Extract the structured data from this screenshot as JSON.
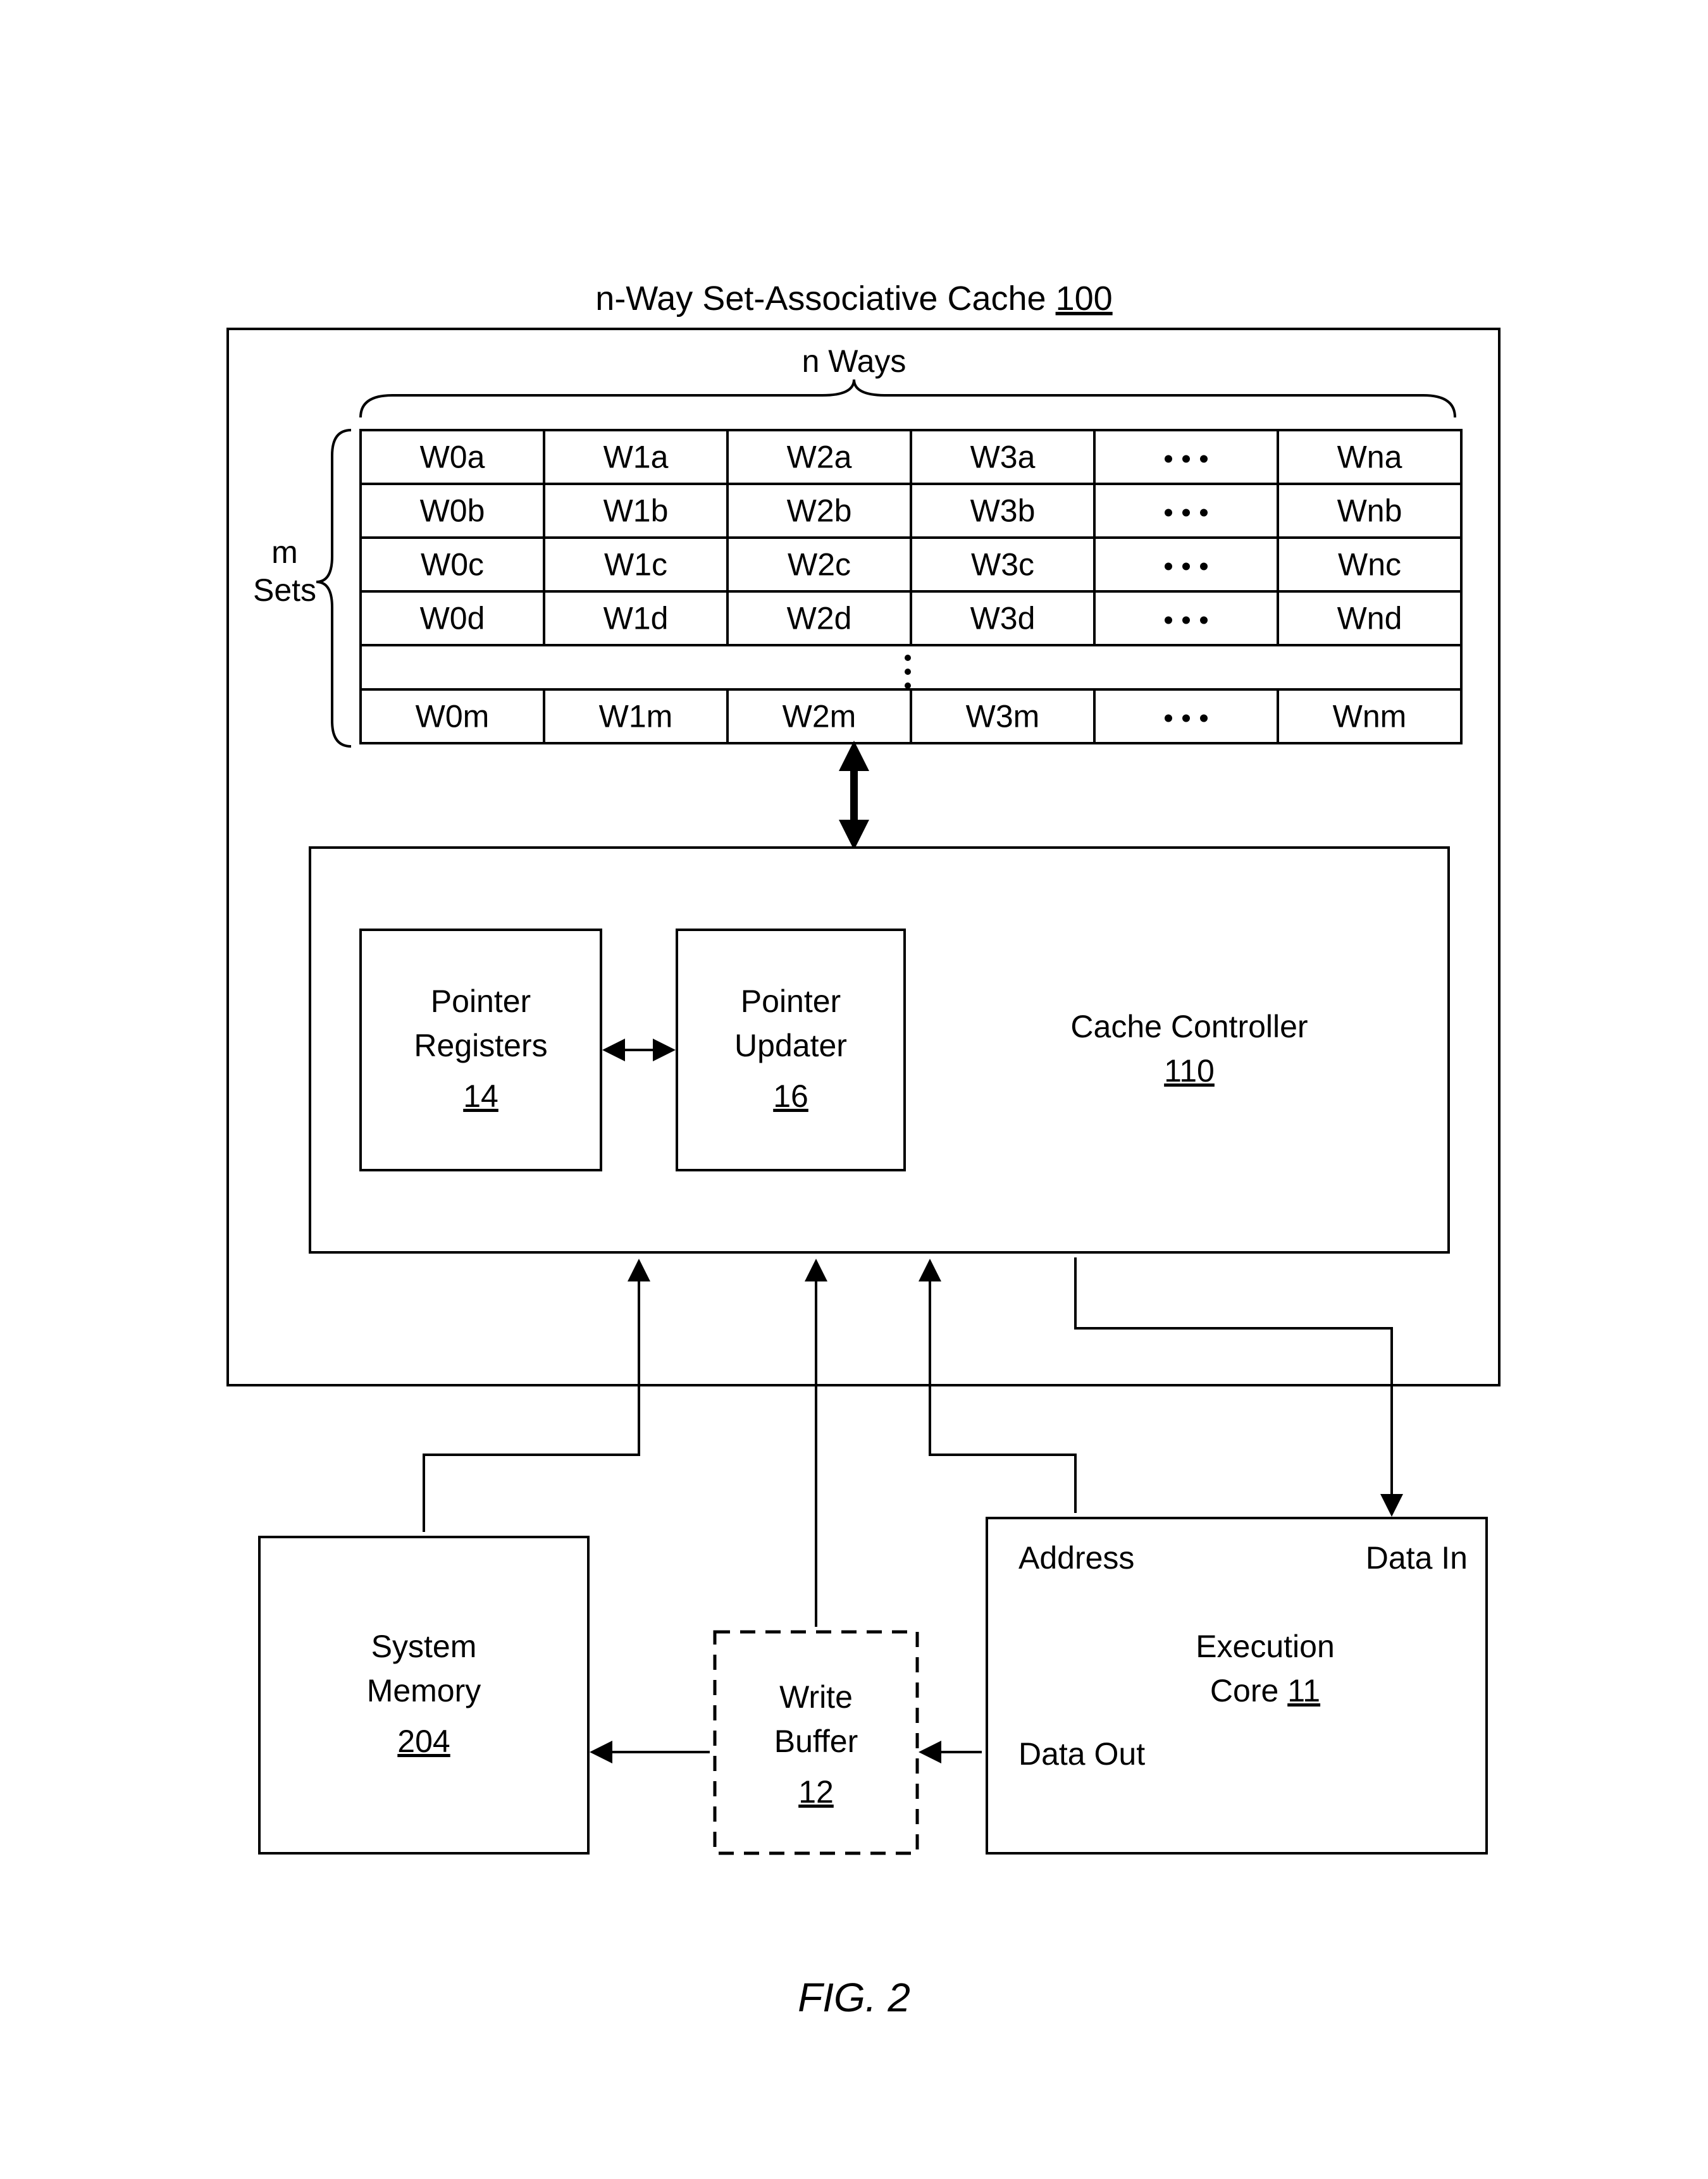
{
  "type": "block-diagram",
  "background_color": "#ffffff",
  "stroke_color": "#000000",
  "font_family": "Arial",
  "title": "n-Way Set-Associative Cache",
  "title_ref": "100",
  "ways_label": "n Ways",
  "sets_label_line1": "m",
  "sets_label_line2": "Sets",
  "cache_table": {
    "columns": 6,
    "rows": 6,
    "cells": [
      [
        "W0a",
        "W1a",
        "W2a",
        "W3a",
        "...",
        "Wna"
      ],
      [
        "W0b",
        "W1b",
        "W2b",
        "W3b",
        "...",
        "Wnb"
      ],
      [
        "W0c",
        "W1c",
        "W2c",
        "W3c",
        "...",
        "Wnc"
      ],
      [
        "W0d",
        "W1d",
        "W2d",
        "W3d",
        "...",
        "Wnd"
      ],
      [
        "",
        "",
        "",
        "",
        "",
        ""
      ],
      [
        "W0m",
        "W1m",
        "W2m",
        "W3m",
        "...",
        "Wnm"
      ]
    ],
    "cell_border_color": "#000000",
    "cell_bg_color": "#ffffff"
  },
  "controller": {
    "label_line1": "Cache Controller",
    "label_ref": "110",
    "pointer_registers": {
      "line1": "Pointer",
      "line2": "Registers",
      "ref": "14"
    },
    "pointer_updater": {
      "line1": "Pointer",
      "line2": "Updater",
      "ref": "16"
    }
  },
  "system_memory": {
    "line1": "System",
    "line2": "Memory",
    "ref": "204"
  },
  "write_buffer": {
    "line1": "Write",
    "line2": "Buffer",
    "ref": "12",
    "dashed": true
  },
  "execution_core": {
    "title_line1": "Execution",
    "title_line2": "Core",
    "ref": "11",
    "addr_label": "Address",
    "data_in_label": "Data In",
    "data_out_label": "Data Out"
  },
  "figure_label": "FIG. 2"
}
